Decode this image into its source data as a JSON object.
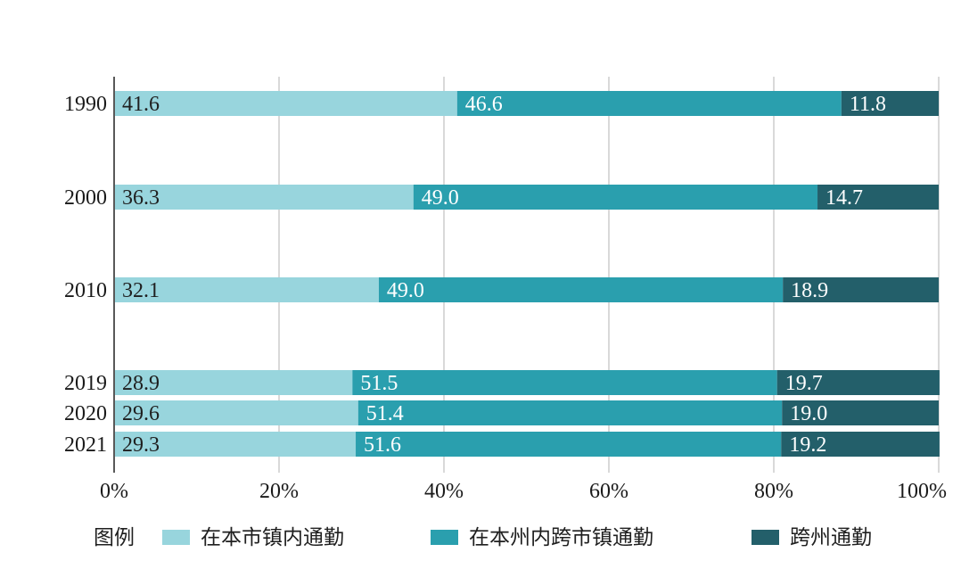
{
  "chart_data": {
    "type": "bar",
    "orientation": "horizontal",
    "stacked": true,
    "categories": [
      "1990",
      "2000",
      "2010",
      "2019",
      "2020",
      "2021"
    ],
    "series": [
      {
        "name": "在本市镇内通勤",
        "color": "#98d5dd",
        "values": [
          41.6,
          36.3,
          32.1,
          28.9,
          29.6,
          29.3
        ]
      },
      {
        "name": "在本州内跨市镇通勤",
        "color": "#2a9fae",
        "values": [
          46.6,
          49.0,
          49.0,
          51.5,
          51.4,
          51.6
        ]
      },
      {
        "name": "跨州通勤",
        "color": "#235f6a",
        "values": [
          11.8,
          14.7,
          18.9,
          19.7,
          19.0,
          19.2
        ]
      }
    ],
    "x_axis": {
      "range": [
        0,
        100
      ],
      "ticks": [
        0,
        20,
        40,
        60,
        80,
        100
      ],
      "tick_labels": [
        "0%",
        "20%",
        "40%",
        "60%",
        "80%",
        "100%"
      ]
    },
    "grid": {
      "vertical": true,
      "horizontal": false
    },
    "data_labels": true,
    "legend": {
      "title": "图例",
      "position": "bottom"
    }
  }
}
